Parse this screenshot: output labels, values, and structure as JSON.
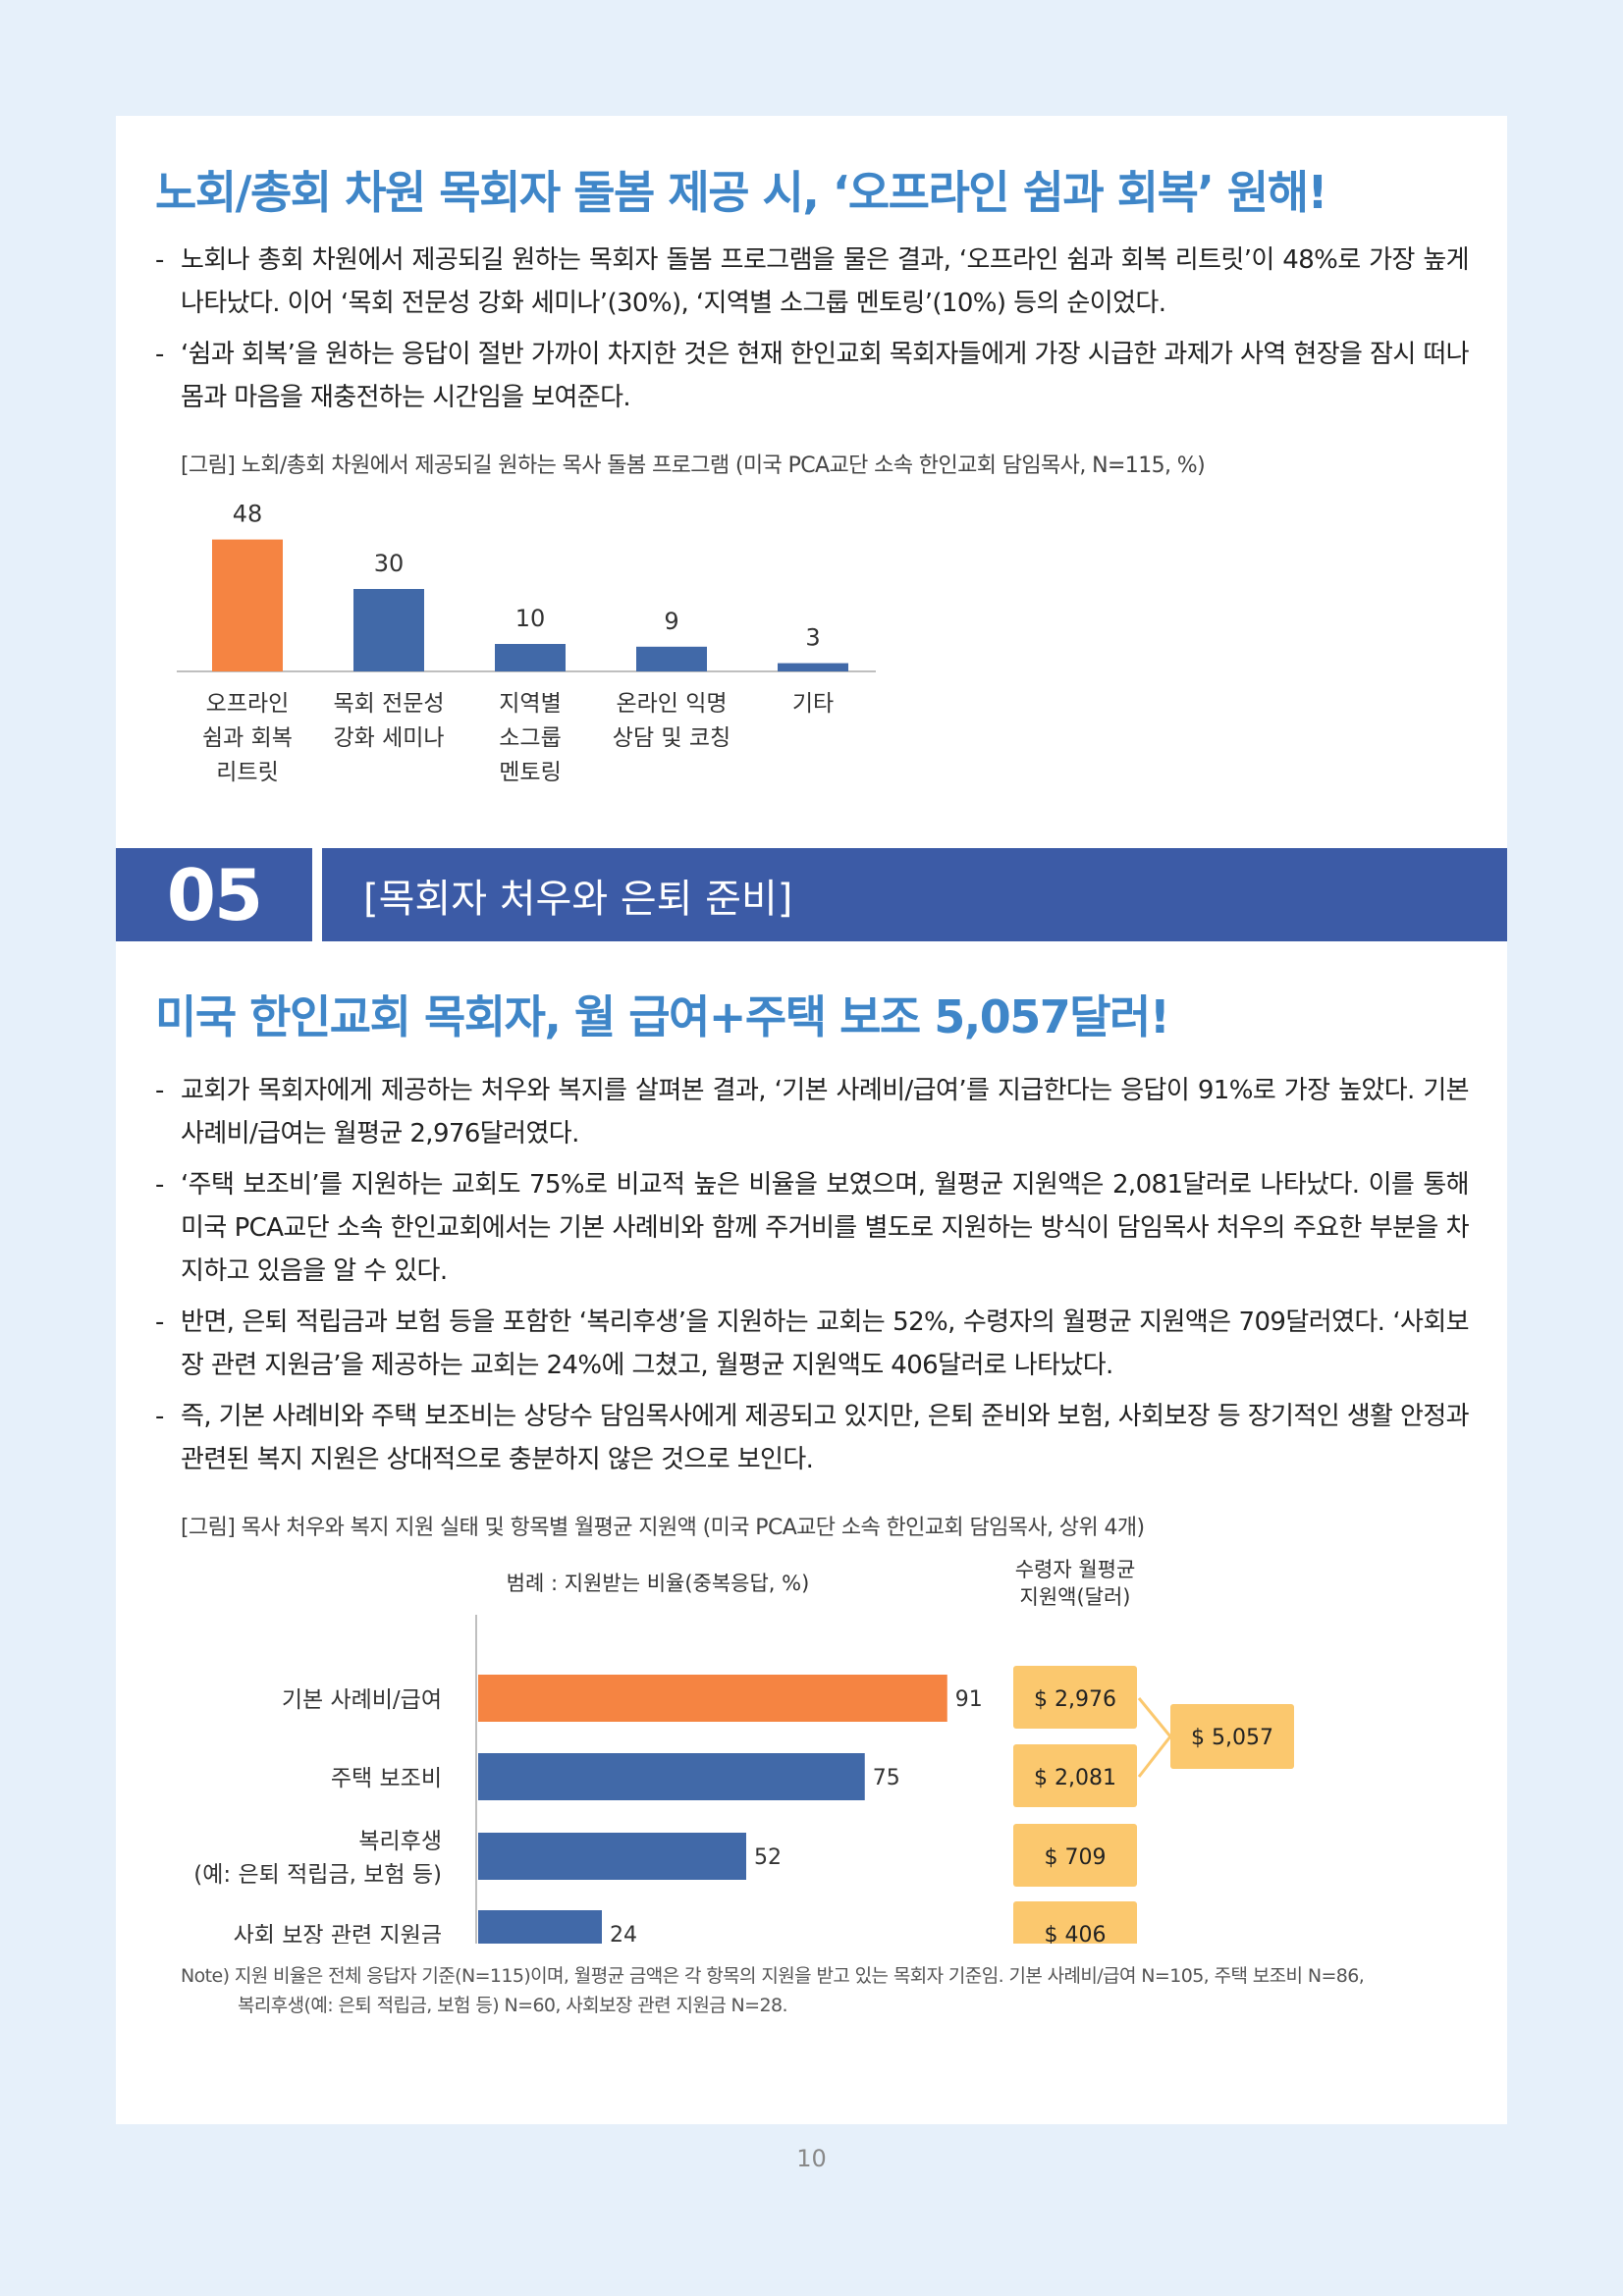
{
  "section1": {
    "headline": "노회/총회 차원 목회자 돌봄 제공 시, ‘오프라인 쉼과 회복’ 원해!",
    "bullets": [
      "노회나 총회 차원에서 제공되길 원하는 목회자 돌봄 프로그램을 물은 결과, ‘오프라인 쉼과 회복 리트릿’이 48%로 가장 높게 나타났다. 이어 ‘목회 전문성 강화 세미나’(30%), ‘지역별 소그룹 멘토링’(10%) 등의 순이었다.",
      "‘쉼과 회복’을 원하는 응답이 절반 가까이 차지한 것은 현재 한인교회 목회자들에게 가장 시급한 과제가 사역 현장을 잠시 떠나 몸과 마음을 재충전하는 시간임을 보여준다."
    ],
    "figure_caption": "[그림] 노회/총회 차원에서 제공되길 원하는 목사 돌봄 프로그램 (미국 PCA교단 소속 한인교회 담임목사, N=115, %)"
  },
  "banner": {
    "number": "05",
    "title": "[목회자 처우와 은퇴 준비]"
  },
  "section2": {
    "headline": "미국 한인교회 목회자, 월 급여+주택 보조 5,057달러!",
    "bullets": [
      "교회가 목회자에게 제공하는 처우와 복지를 살펴본 결과, ‘기본 사례비/급여’를 지급한다는 응답이 91%로 가장 높았다. 기본 사례비/급여는 월평균 2,976달러였다.",
      "‘주택 보조비’를 지원하는 교회도 75%로 비교적 높은 비율을 보였으며, 월평균 지원액은 2,081달러로 나타났다. 이를 통해 미국 PCA교단 소속 한인교회에서는 기본 사례비와 함께 주거비를 별도로 지원하는 방식이 담임목사 처우의 주요한 부분을 차지하고 있음을 알 수 있다.",
      "반면, 은퇴 적립금과 보험 등을 포함한 ‘복리후생’을 지원하는 교회는 52%, 수령자의 월평균 지원액은 709달러였다. ‘사회보장 관련 지원금’을 제공하는 교회는 24%에 그쳤고, 월평균 지원액도 406달러로 나타났다.",
      "즉, 기본 사례비와 주택 보조비는 상당수 담임목사에게 제공되고 있지만, 은퇴 준비와 보험, 사회보장 등 장기적인 생활 안정과 관련된 복지 지원은 상대적으로 충분하지 않은 것으로 보인다."
    ],
    "figure_caption": "[그림] 목사 처우와 복지 지원 실태 및 항목별 월평균 지원액 (미국 PCA교단 소속 한인교회 담임목사, 상위 4개)",
    "note_line1": "Note) 지원 비율은 전체 응답자 기준(N=115)이며, 월평균 금액은 각 항목의 지원을 받고 있는 목회자 기준임. 기본 사례비/급여 N=105, 주택 보조비 N=86,",
    "note_line2": "복리후생(예: 은퇴 적립금, 보험 등) N=60, 사회보장 관련 지원금 N=28."
  },
  "chart_data": [
    {
      "type": "bar",
      "categories": [
        [
          "오프라인",
          "쉼과 회복",
          "리트릿"
        ],
        [
          "목회 전문성",
          "강화 세미나"
        ],
        [
          "지역별",
          "소그룹",
          "멘토링"
        ],
        [
          "온라인 익명",
          "상담 및 코칭"
        ],
        [
          "기타"
        ]
      ],
      "values": [
        48,
        30,
        10,
        9,
        3
      ],
      "ylim": [
        0,
        55
      ],
      "highlight_color": "#f58442",
      "base_color": "#4169a8"
    },
    {
      "type": "bar",
      "orientation": "horizontal",
      "legend_text": "범례 : 지원받는 비율(중복응답, %)",
      "amount_header": [
        "수령자 월평균",
        "지원액(달러)"
      ],
      "categories": [
        [
          "기본 사례비/급여"
        ],
        [
          "주택 보조비"
        ],
        [
          "복리후생",
          "(예: 은퇴 적립금, 보험 등)"
        ],
        [
          "사회 보장 관련 지원금"
        ]
      ],
      "values": [
        91,
        75,
        52,
        24
      ],
      "xlim": [
        0,
        100
      ],
      "amounts": [
        "$ 2,976",
        "$ 2,081",
        "$ 709",
        "$ 406"
      ],
      "combined_total": "$ 5,057",
      "highlight_color": "#f58442",
      "base_color": "#4169a8",
      "amount_box_color": "#fbc86e"
    }
  ],
  "page_number": "10"
}
